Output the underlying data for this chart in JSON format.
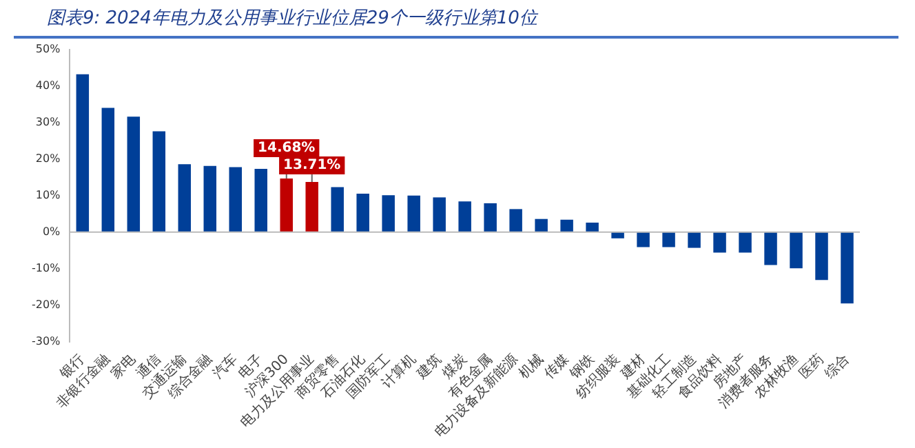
{
  "chart_data": {
    "type": "bar",
    "title": "图表9:  2024年电力及公用事业行业位居29个一级行业第10位",
    "categories": [
      "银行",
      "非银行金融",
      "家电",
      "通信",
      "交通运输",
      "综合金融",
      "汽车",
      "电子",
      "沪深300",
      "电力及公用事业",
      "商贸零售",
      "石油石化",
      "国防军工",
      "计算机",
      "建筑",
      "煤炭",
      "有色金属",
      "电力设备及新能源",
      "机械",
      "传媒",
      "钢铁",
      "纺织服装",
      "建材",
      "基础化工",
      "轻工制造",
      "食品饮料",
      "房地产",
      "消费者服务",
      "农林牧渔",
      "医药",
      "综合"
    ],
    "values": [
      43.2,
      34.0,
      31.6,
      27.6,
      18.6,
      18.1,
      17.8,
      17.3,
      14.68,
      13.71,
      12.3,
      10.5,
      10.1,
      10.0,
      9.5,
      8.4,
      7.9,
      6.3,
      3.6,
      3.4,
      2.6,
      -1.7,
      -4.1,
      -4.1,
      -4.3,
      -5.6,
      -5.6,
      -9.0,
      -9.9,
      -13.1,
      -19.5
    ],
    "colors": [
      "#003f98",
      "#003f98",
      "#003f98",
      "#003f98",
      "#003f98",
      "#003f98",
      "#003f98",
      "#003f98",
      "#c00000",
      "#c00000",
      "#003f98",
      "#003f98",
      "#003f98",
      "#003f98",
      "#003f98",
      "#003f98",
      "#003f98",
      "#003f98",
      "#003f98",
      "#003f98",
      "#003f98",
      "#003f98",
      "#003f98",
      "#003f98",
      "#003f98",
      "#003f98",
      "#003f98",
      "#003f98",
      "#003f98",
      "#003f98",
      "#003f98"
    ],
    "value_labels": [
      null,
      null,
      null,
      null,
      null,
      null,
      null,
      null,
      "14.68%",
      "13.71%",
      null,
      null,
      null,
      null,
      null,
      null,
      null,
      null,
      null,
      null,
      null,
      null,
      null,
      null,
      null,
      null,
      null,
      null,
      null,
      null,
      null
    ],
    "ylim": [
      -30,
      50
    ],
    "yticks": [
      {
        "value": -30,
        "label": "-30%"
      },
      {
        "value": -20,
        "label": "-20%"
      },
      {
        "value": -10,
        "label": "-10%"
      },
      {
        "value": 0,
        "label": "0%"
      },
      {
        "value": 10,
        "label": "10%"
      },
      {
        "value": 20,
        "label": "20%"
      },
      {
        "value": 30,
        "label": "30%"
      },
      {
        "value": 40,
        "label": "40%"
      },
      {
        "value": 50,
        "label": "50%"
      }
    ],
    "legend": false
  }
}
